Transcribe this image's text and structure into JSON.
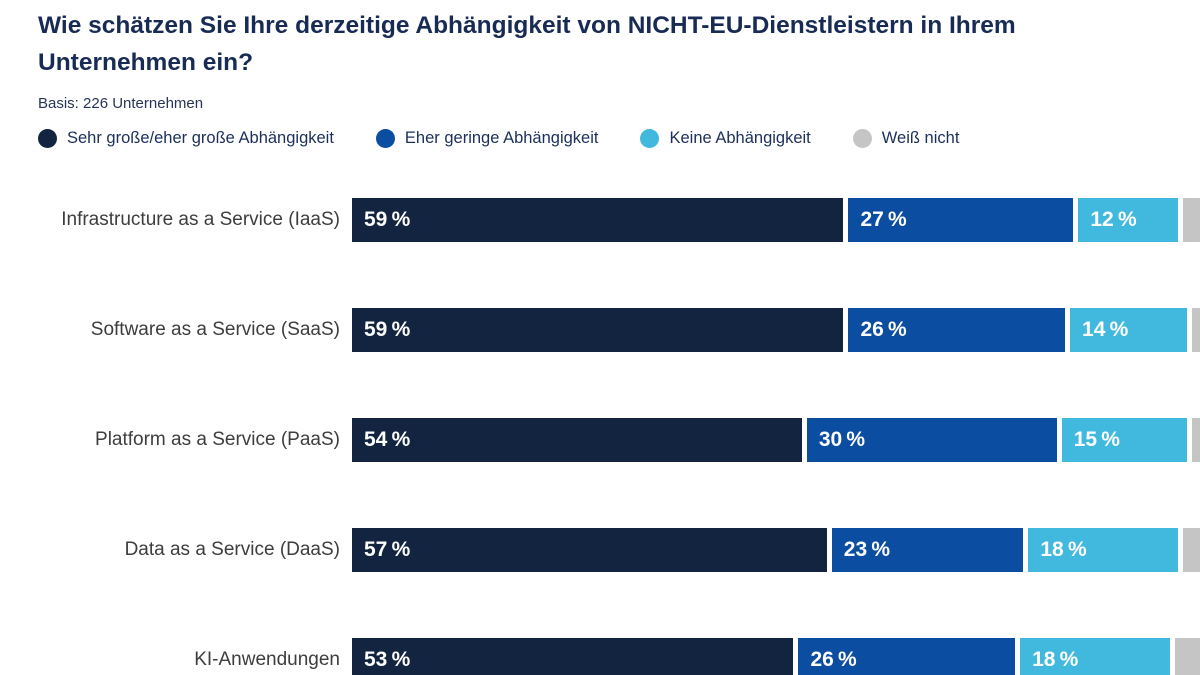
{
  "title": "Wie schätzen Sie Ihre derzeitige Abhängigkeit von NICHT-EU-Dienstleistern in Ihrem Unternehmen ein?",
  "basis": "Basis: 226 Unternehmen",
  "colors": {
    "title_text": "#182b54",
    "category_text": "#3d3d3d",
    "series": [
      "#132440",
      "#0b4da1",
      "#41b9de",
      "#c5c5c5"
    ]
  },
  "legend": [
    {
      "label": "Sehr große/eher große Abhängigkeit"
    },
    {
      "label": "Eher geringe Abhängigkeit"
    },
    {
      "label": "Keine Abhängigkeit"
    },
    {
      "label": "Weiß nicht"
    }
  ],
  "chart_data": {
    "type": "bar",
    "variant": "horizontal-stacked",
    "unit": "%",
    "xlim": [
      0,
      100
    ],
    "legend_position": "top",
    "grid": false,
    "categories": [
      "Infrastructure as a Service (IaaS)",
      "Software as a Service (SaaS)",
      "Platform as a Service (PaaS)",
      "Data as a Service (DaaS)",
      "KI-Anwendungen"
    ],
    "series": [
      {
        "name": "Sehr große/eher große Abhängigkeit",
        "color": "#132440",
        "values": [
          59,
          59,
          54,
          57,
          53
        ]
      },
      {
        "name": "Eher geringe Abhängigkeit",
        "color": "#0b4da1",
        "values": [
          27,
          26,
          30,
          23,
          26
        ]
      },
      {
        "name": "Keine Abhängigkeit",
        "color": "#41b9de",
        "values": [
          12,
          14,
          15,
          18,
          18
        ]
      },
      {
        "name": "Weiß nicht",
        "color": "#c5c5c5",
        "values": [
          2,
          1,
          1,
          2,
          3
        ]
      }
    ],
    "rows": [
      {
        "label": "Infrastructure as a Service (IaaS)",
        "segments": [
          {
            "value": 59,
            "label": "59 %"
          },
          {
            "value": 27,
            "label": "27 %"
          },
          {
            "value": 12,
            "label": "12 %"
          },
          {
            "value": 2,
            "label": ""
          }
        ]
      },
      {
        "label": "Software as a Service (SaaS)",
        "segments": [
          {
            "value": 59,
            "label": "59 %"
          },
          {
            "value": 26,
            "label": "26 %"
          },
          {
            "value": 14,
            "label": "14 %"
          },
          {
            "value": 1,
            "label": ""
          }
        ]
      },
      {
        "label": "Platform as a Service (PaaS)",
        "segments": [
          {
            "value": 54,
            "label": "54 %"
          },
          {
            "value": 30,
            "label": "30 %"
          },
          {
            "value": 15,
            "label": "15 %"
          },
          {
            "value": 1,
            "label": ""
          }
        ]
      },
      {
        "label": "Data as a Service (DaaS)",
        "segments": [
          {
            "value": 57,
            "label": "57 %"
          },
          {
            "value": 23,
            "label": "23 %"
          },
          {
            "value": 18,
            "label": "18 %"
          },
          {
            "value": 2,
            "label": ""
          }
        ]
      },
      {
        "label": "KI-Anwendungen",
        "segments": [
          {
            "value": 53,
            "label": "53 %"
          },
          {
            "value": 26,
            "label": "26 %"
          },
          {
            "value": 18,
            "label": "18 %"
          },
          {
            "value": 3,
            "label": ""
          }
        ]
      }
    ]
  }
}
